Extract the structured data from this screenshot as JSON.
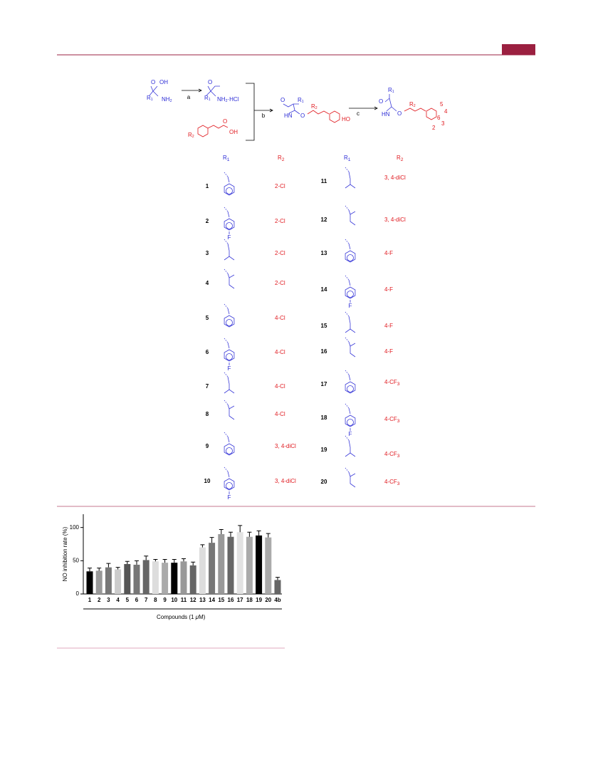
{
  "scheme": {
    "reagents": [
      "a",
      "b",
      "c"
    ],
    "labels": [
      {
        "text": "O"
      },
      {
        "text": "OH"
      },
      {
        "text": "R",
        "sub": "1"
      },
      {
        "text": "NH",
        "sub": "2"
      },
      {
        "text": "O"
      },
      {
        "text": "R",
        "sub": "1"
      },
      {
        "text": "NH",
        "sub": "2",
        "tail": "·HCl"
      },
      {
        "text": "R",
        "sub": "2"
      },
      {
        "text": "O"
      },
      {
        "text": "OH"
      },
      {
        "text": "O"
      },
      {
        "text": "R",
        "sub": "1"
      },
      {
        "text": "HN"
      },
      {
        "text": "O"
      },
      {
        "text": "R",
        "sub": "2"
      },
      {
        "text": "HO"
      },
      {
        "text": "O"
      },
      {
        "text": "R",
        "sub": "1"
      },
      {
        "text": "HN"
      },
      {
        "text": "O"
      },
      {
        "text": "R",
        "sub": "2"
      },
      {
        "text": "6"
      },
      {
        "text": "5"
      },
      {
        "text": "4"
      },
      {
        "text": "3"
      },
      {
        "text": "2"
      }
    ]
  },
  "table": {
    "headers": [
      {
        "text": "R",
        "sub": "1"
      },
      {
        "text": "R",
        "sub": "2"
      },
      {
        "text": "R",
        "sub": "1"
      },
      {
        "text": "R",
        "sub": "2"
      }
    ],
    "rows": [
      {
        "number": "1",
        "r2": {
          "text": "2-Cl"
        }
      },
      {
        "number": "2",
        "atom": "F",
        "r2": {
          "text": "2-Cl"
        }
      },
      {
        "number": "3",
        "r2": {
          "text": "2-Cl"
        }
      },
      {
        "number": "4",
        "r2": {
          "text": "2-Cl"
        }
      },
      {
        "number": "5",
        "r2": {
          "text": "4-Cl"
        }
      },
      {
        "number": "6",
        "atom": "F",
        "r2": {
          "text": "4-Cl"
        }
      },
      {
        "number": "7",
        "r2": {
          "text": "4-Cl"
        }
      },
      {
        "number": "8",
        "r2": {
          "text": "4-Cl"
        }
      },
      {
        "number": "9",
        "r2": {
          "text": "3, 4-diCl"
        }
      },
      {
        "number": "10",
        "atom": "F",
        "r2": {
          "text": "3, 4-diCl"
        }
      },
      {
        "number": "11",
        "r2": {
          "text": "3, 4-diCl"
        }
      },
      {
        "number": "12",
        "r2": {
          "text": "3, 4-diCl"
        }
      },
      {
        "number": "13",
        "r2": {
          "text": "4-F"
        }
      },
      {
        "number": "14",
        "atom": "F",
        "r2": {
          "text": "4-F"
        }
      },
      {
        "number": "15",
        "r2": {
          "text": "4-F"
        }
      },
      {
        "number": "16",
        "r2": {
          "text": "4-F"
        }
      },
      {
        "number": "17",
        "r2": {
          "text": "4-CF",
          "sub": "3"
        }
      },
      {
        "number": "18",
        "atom": "F",
        "r2": {
          "text": "4-CF",
          "sub": "3"
        }
      },
      {
        "number": "19",
        "r2": {
          "text": "4-CF",
          "sub": "3"
        }
      },
      {
        "number": "20",
        "r2": {
          "text": "4-CF",
          "sub": "3"
        }
      }
    ]
  },
  "chart_data": {
    "type": "bar",
    "ylabel": "NO inhibition rate (%)",
    "xlabel": {
      "text": "Compounds (1 ",
      "italic": "μ",
      "tail": "M)"
    },
    "categories": [
      "1",
      "2",
      "3",
      "4",
      "5",
      "6",
      "7",
      "8",
      "9",
      "10",
      "11",
      "12",
      "13",
      "14",
      "15",
      "16",
      "17",
      "18",
      "19",
      "20",
      "4b"
    ],
    "values": [
      34,
      35,
      40,
      37,
      45,
      44,
      51,
      49,
      47,
      47,
      49,
      43,
      70,
      77,
      90,
      86,
      93,
      86,
      88,
      85,
      21
    ],
    "errors": [
      5,
      4,
      6,
      3,
      4,
      6,
      6,
      3,
      5,
      5,
      4,
      5,
      4,
      8,
      7,
      7,
      10,
      7,
      7,
      6,
      4
    ],
    "colors": [
      "#000000",
      "#999999",
      "#777777",
      "#cccccc",
      "#555555",
      "#777777",
      "#666666",
      "#dddddd",
      "#aaaaaa",
      "#000000",
      "#999999",
      "#666666",
      "#dddddd",
      "#777777",
      "#999999",
      "#666666",
      "#e2e2e2",
      "#aaaaaa",
      "#000000",
      "#aaaaaa",
      "#666666"
    ],
    "ylim": [
      0,
      120
    ],
    "yticks": [
      0,
      50,
      100
    ]
  }
}
